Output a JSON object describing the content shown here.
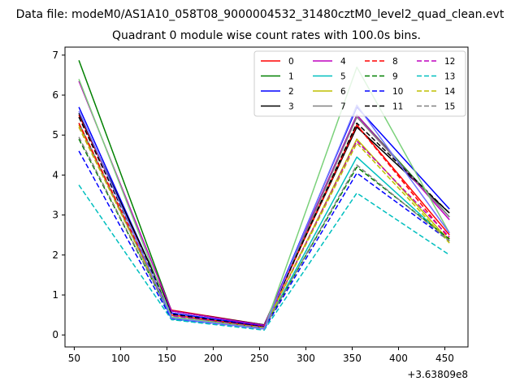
{
  "figure": {
    "suptitle": "Data file: modeM0/AS1A10_058T08_9000004532_31480cztM0_level2_quad_clean.evt",
    "title": "Quadrant 0 module wise count rates with 100.0s bins.",
    "x_offset_label": "+3.63809e8"
  },
  "chart_data": {
    "type": "line",
    "title": "Quadrant 0 module wise count rates with 100.0s bins.",
    "xlabel": "",
    "ylabel": "",
    "x_offset": "+3.63809e8",
    "xlim": [
      40,
      475
    ],
    "ylim": [
      -0.3,
      7.2
    ],
    "x_ticks": [
      50,
      100,
      150,
      200,
      250,
      300,
      350,
      400,
      450
    ],
    "x_tick_labels": [
      "50",
      "100",
      "150",
      "200",
      "250",
      "300",
      "350",
      "400",
      "450"
    ],
    "y_ticks": [
      0,
      1,
      2,
      3,
      4,
      5,
      6,
      7
    ],
    "y_tick_labels": [
      "0",
      "1",
      "2",
      "3",
      "4",
      "5",
      "6",
      "7"
    ],
    "grid": false,
    "legend_position": "top-right",
    "legend_columns": 4,
    "x": [
      55,
      155,
      255,
      355,
      455
    ],
    "series": [
      {
        "name": "0",
        "color": "#ff0000",
        "dash": "solid",
        "values": [
          5.5,
          0.62,
          0.25,
          5.25,
          2.5
        ]
      },
      {
        "name": "1",
        "color": "#008000",
        "dash": "solid",
        "values": [
          6.87,
          0.6,
          0.25,
          5.5,
          2.95
        ]
      },
      {
        "name": "2",
        "color": "#0000ff",
        "dash": "solid",
        "values": [
          5.7,
          0.55,
          0.22,
          5.7,
          3.15
        ]
      },
      {
        "name": "3",
        "color": "#000000",
        "dash": "solid",
        "values": [
          5.55,
          0.6,
          0.25,
          5.2,
          3.05
        ]
      },
      {
        "name": "4",
        "color": "#bf00bf",
        "dash": "solid",
        "values": [
          6.35,
          0.6,
          0.24,
          5.5,
          2.88
        ]
      },
      {
        "name": "5",
        "color": "#00bfbf",
        "dash": "solid",
        "values": [
          5.3,
          0.4,
          0.17,
          4.45,
          2.35
        ]
      },
      {
        "name": "6",
        "color": "#bfbf00",
        "dash": "solid",
        "values": [
          5.25,
          0.45,
          0.18,
          4.9,
          2.35
        ]
      },
      {
        "name": "7",
        "color": "#808080",
        "dash": "solid",
        "values": [
          5.3,
          0.45,
          0.2,
          5.45,
          2.95
        ]
      },
      {
        "name": "8",
        "color": "#ff0000",
        "dash": "dashed",
        "values": [
          5.3,
          0.5,
          0.2,
          5.25,
          2.4
        ]
      },
      {
        "name": "9",
        "color": "#008000",
        "dash": "dashed",
        "values": [
          4.9,
          0.45,
          0.18,
          4.2,
          2.4
        ]
      },
      {
        "name": "10",
        "color": "#0000ff",
        "dash": "dashed",
        "values": [
          4.6,
          0.4,
          0.15,
          4.05,
          2.35
        ]
      },
      {
        "name": "11",
        "color": "#000000",
        "dash": "dashed",
        "values": [
          5.45,
          0.52,
          0.2,
          5.3,
          3.05
        ]
      },
      {
        "name": "12",
        "color": "#bf00bf",
        "dash": "dashed",
        "values": [
          5.2,
          0.48,
          0.19,
          4.85,
          2.45
        ]
      },
      {
        "name": "13",
        "color": "#00bfbf",
        "dash": "dashed",
        "values": [
          3.75,
          0.38,
          0.12,
          3.55,
          2.0
        ]
      },
      {
        "name": "14",
        "color": "#bfbf00",
        "dash": "dashed",
        "values": [
          5.2,
          0.45,
          0.18,
          4.8,
          2.3
        ]
      },
      {
        "name": "15",
        "color": "#808080",
        "dash": "dashed",
        "values": [
          4.95,
          0.45,
          0.17,
          4.25,
          2.35
        ]
      },
      {
        "name": "",
        "color": "#7ad17a",
        "dash": "solid",
        "values": [
          6.4,
          0.45,
          0.15,
          6.7,
          2.55
        ]
      },
      {
        "name": "",
        "color": "#7070ff",
        "dash": "solid",
        "values": [
          5.6,
          0.42,
          0.15,
          5.75,
          2.55
        ]
      }
    ]
  }
}
